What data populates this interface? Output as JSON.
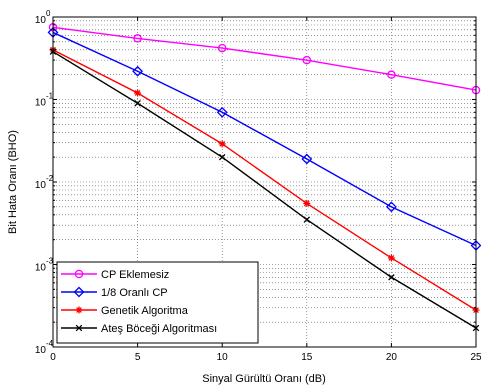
{
  "chart_data": {
    "type": "line",
    "title": "",
    "xlabel": "Sinyal Gürültü Oranı (dB)",
    "ylabel": "Bit Hata Oranı (BHO)",
    "xlim": [
      0,
      25
    ],
    "ylim": [
      0.0001,
      1
    ],
    "y_scale": "log",
    "grid": true,
    "legend_position": "bottom-left",
    "x_ticks": [
      "0",
      "5",
      "10",
      "15",
      "20",
      "25"
    ],
    "y_tick_bases": [
      "10",
      "10",
      "10",
      "10",
      "10"
    ],
    "y_tick_exponents": [
      "-4",
      "-3",
      "-2",
      "-1",
      "0"
    ],
    "y_tick_values": [
      0.0001,
      0.001,
      0.01,
      0.1,
      1
    ],
    "x": [
      0,
      5,
      10,
      15,
      20,
      25
    ],
    "series": [
      {
        "name": "CP Eklemesiz",
        "color": "#ff00ff",
        "marker": "circle",
        "values": [
          0.75,
          0.55,
          0.42,
          0.3,
          0.2,
          0.13
        ]
      },
      {
        "name": "1/8 Oranlı CP",
        "color": "#0000ff",
        "marker": "diamond",
        "values": [
          0.65,
          0.22,
          0.07,
          0.019,
          0.005,
          0.0017
        ]
      },
      {
        "name": "Genetik Algoritma",
        "color": "#ff0000",
        "marker": "star",
        "values": [
          0.4,
          0.12,
          0.029,
          0.0055,
          0.0012,
          0.00028
        ]
      },
      {
        "name": "Ateş Böceği Algoritması",
        "color": "#000000",
        "marker": "x",
        "values": [
          0.38,
          0.09,
          0.02,
          0.0035,
          0.0007,
          0.00017
        ]
      }
    ]
  }
}
